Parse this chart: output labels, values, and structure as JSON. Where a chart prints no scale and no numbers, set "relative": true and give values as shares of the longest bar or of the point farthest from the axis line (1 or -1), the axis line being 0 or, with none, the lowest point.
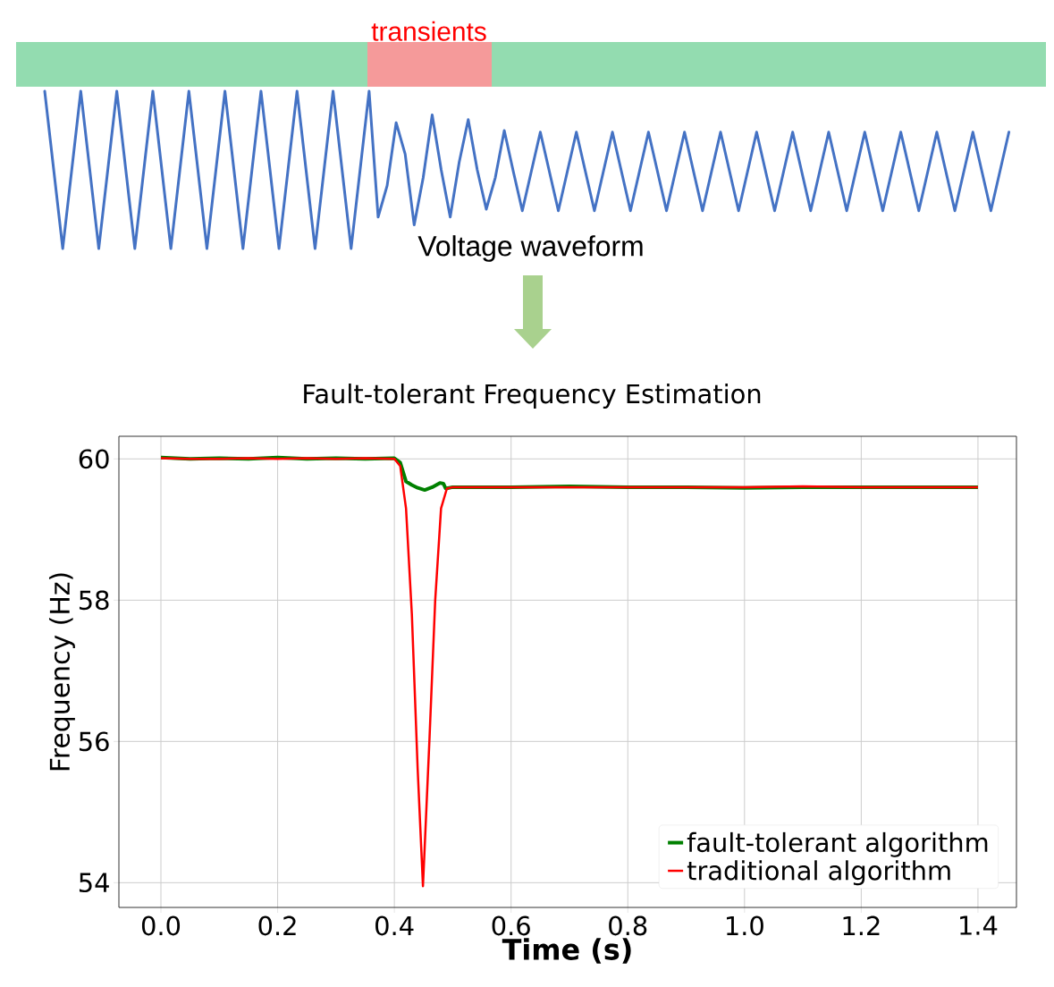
{
  "chart_data": [
    {
      "type": "line",
      "relative": true,
      "xlabel": "Voltage waveform",
      "categories": [
        null,
        null,
        null,
        null,
        null,
        null,
        null,
        null,
        null,
        null,
        null,
        null,
        null,
        null,
        null,
        null,
        null,
        null,
        null,
        null,
        null,
        null,
        null,
        null,
        null,
        null,
        null,
        null,
        null,
        null,
        null,
        null,
        null,
        null,
        null,
        null,
        null,
        null,
        null,
        null,
        null,
        null,
        null,
        null,
        null,
        null,
        null,
        null,
        null,
        null,
        null,
        null,
        null,
        null,
        null,
        null,
        null,
        null,
        null,
        null,
        null,
        null,
        null,
        null,
        null,
        null,
        null,
        null,
        null,
        null,
        null,
        null,
        null,
        null,
        null,
        null,
        null,
        null,
        null,
        null,
        null,
        null,
        null,
        null,
        null,
        null,
        null,
        null,
        null,
        null,
        null,
        null,
        null,
        null,
        null,
        null,
        null,
        null,
        null,
        null,
        null,
        null,
        null,
        null,
        null,
        null,
        null,
        null
      ],
      "series": [
        {
          "color": "#4472c4",
          "values": [
            1,
            0.5,
            0,
            0.5,
            1,
            0.5,
            0,
            0.5,
            1,
            0.5,
            0,
            0.5,
            1,
            0.5,
            0,
            0.5,
            1,
            0.5,
            0,
            0.5,
            1,
            0.5,
            0,
            0.5,
            1,
            0.5,
            0,
            0.5,
            1,
            0.5,
            0,
            0.5,
            1,
            0.5,
            0,
            0.5,
            1,
            0.2,
            0.4,
            0.8,
            0.6,
            0.15,
            0.45,
            0.85,
            0.5,
            0.2,
            0.55,
            0.82,
            0.5,
            0.25,
            0.45,
            0.75,
            0.49,
            0.24,
            0.49,
            0.74,
            0.49,
            0.24,
            0.49,
            0.74,
            0.49,
            0.24,
            0.49,
            0.74,
            0.49,
            0.24,
            0.49,
            0.74,
            0.49,
            0.24,
            0.49,
            0.74,
            0.49,
            0.24,
            0.49,
            0.74,
            0.49,
            0.24,
            0.49,
            0.74,
            0.49,
            0.24,
            0.49,
            0.74,
            0.49,
            0.24,
            0.49,
            0.74,
            0.49,
            0.24,
            0.49,
            0.74,
            0.49,
            0.24,
            0.49,
            0.74,
            0.49,
            0.24,
            0.49,
            0.74,
            0.49,
            0.24,
            0.49,
            0.74,
            0.49,
            0.24,
            0.49,
            0.74
          ]
        }
      ],
      "annotations": [
        "transients"
      ]
    },
    {
      "type": "line",
      "title": "Fault-tolerant Frequency Estimation",
      "xlabel": "Time (s)",
      "ylabel": "Frequency (Hz)",
      "xlim": [
        -0.072,
        1.466
      ],
      "ylim": [
        53.65,
        60.32
      ],
      "xticks": [
        {
          "value": 0,
          "label": "0.0"
        },
        {
          "value": 0.2,
          "label": "0.2"
        },
        {
          "value": 0.4,
          "label": "0.4"
        },
        {
          "value": 0.6,
          "label": "0.6"
        },
        {
          "value": 0.8,
          "label": "0.8"
        },
        {
          "value": 1.0,
          "label": "1.0"
        },
        {
          "value": 1.2,
          "label": "1.2"
        },
        {
          "value": 1.4,
          "label": "1.4"
        }
      ],
      "yticks": [
        54,
        56,
        58,
        60
      ],
      "grid": true,
      "legend": "bottom right",
      "series": [
        {
          "name": "fault-tolerant algorithm",
          "color": "#008000",
          "x": [
            0,
            0.05,
            0.1,
            0.15,
            0.2,
            0.25,
            0.3,
            0.35,
            0.4,
            0.41,
            0.42,
            0.43,
            0.44,
            0.452,
            0.465,
            0.478,
            0.484,
            0.488,
            0.5,
            0.6,
            0.7,
            0.8,
            0.9,
            1.0,
            1.1,
            1.2,
            1.3,
            1.4
          ],
          "values": [
            60.02,
            60.0,
            60.01,
            60.0,
            60.02,
            60.0,
            60.01,
            60.0,
            60.01,
            59.95,
            59.68,
            59.63,
            59.59,
            59.56,
            59.6,
            59.66,
            59.65,
            59.58,
            59.6,
            59.6,
            59.61,
            59.6,
            59.6,
            59.59,
            59.6,
            59.6,
            59.6,
            59.6
          ]
        },
        {
          "name": "traditional algorithm",
          "color": "#ff0000",
          "x": [
            0,
            0.05,
            0.1,
            0.15,
            0.2,
            0.25,
            0.3,
            0.35,
            0.4,
            0.41,
            0.42,
            0.43,
            0.44,
            0.449,
            0.46,
            0.47,
            0.48,
            0.49,
            0.5,
            0.6,
            0.7,
            0.8,
            0.9,
            1.0,
            1.1,
            1.2,
            1.3,
            1.4
          ],
          "values": [
            60.01,
            60.0,
            60.0,
            60.01,
            60.0,
            60.01,
            60.0,
            60.01,
            60.0,
            59.9,
            59.3,
            57.8,
            55.6,
            53.95,
            56.0,
            58.0,
            59.3,
            59.58,
            59.6,
            59.6,
            59.6,
            59.6,
            59.6,
            59.6,
            59.61,
            59.6,
            59.6,
            59.6
          ]
        }
      ]
    }
  ]
}
